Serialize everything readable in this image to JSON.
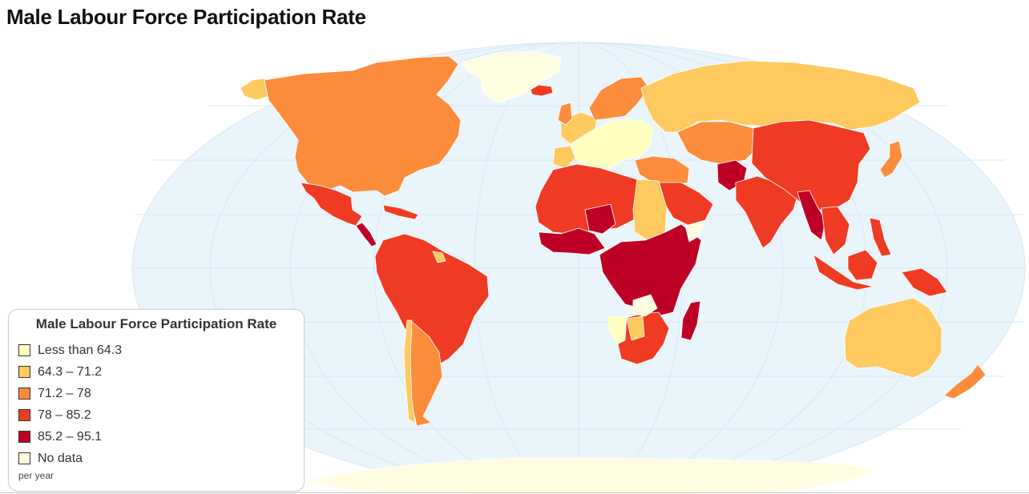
{
  "title": "Male Labour Force Participation Rate",
  "map": {
    "ocean_color": "#eaf4fb",
    "graticule_color": "#d6e8f4",
    "border_color": "#ffffff"
  },
  "legend": {
    "title": "Male Labour Force Participation Rate",
    "items": [
      {
        "label": "Less than 64.3",
        "color": "#ffffbf"
      },
      {
        "label": "64.3 – 71.2",
        "color": "#fec95f"
      },
      {
        "label": "71.2 – 78",
        "color": "#fb8c3c"
      },
      {
        "label": "78 – 85.2",
        "color": "#ef3b24"
      },
      {
        "label": "85.2 – 95.1",
        "color": "#bf0026"
      },
      {
        "label": "No data",
        "color": "#fffde1"
      }
    ],
    "note": "per year"
  }
}
